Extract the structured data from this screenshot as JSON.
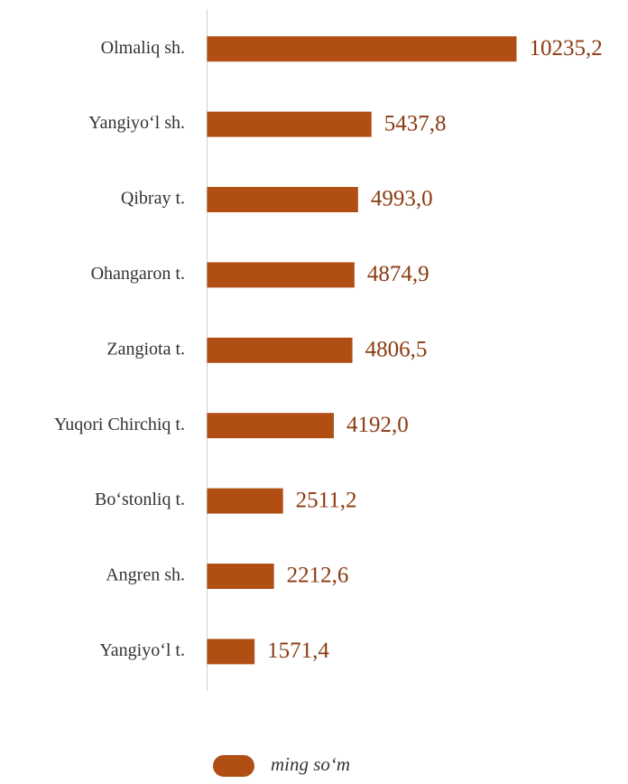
{
  "chart_data": {
    "type": "bar",
    "orientation": "horizontal",
    "categories": [
      "Olmaliq sh.",
      "Yangiyo‘l sh.",
      "Qibray t.",
      "Ohangaron t.",
      "Zangiota t.",
      "Yuqori Chirchiq t.",
      "Bo‘stonliq t.",
      "Angren sh.",
      "Yangiyo‘l t."
    ],
    "series": [
      {
        "name": "ming so‘m",
        "color": "#b04e14",
        "values": [
          10235.2,
          5437.8,
          4993.0,
          4874.9,
          4806.5,
          4192.0,
          2511.2,
          2212.6,
          1571.4
        ],
        "value_labels": [
          "10235,2",
          "5437,8",
          "4993,0",
          "4874,9",
          "4806,5",
          "4192,0",
          "2511,2",
          "2212,6",
          "1571,4"
        ]
      }
    ],
    "legend": "bottom"
  }
}
